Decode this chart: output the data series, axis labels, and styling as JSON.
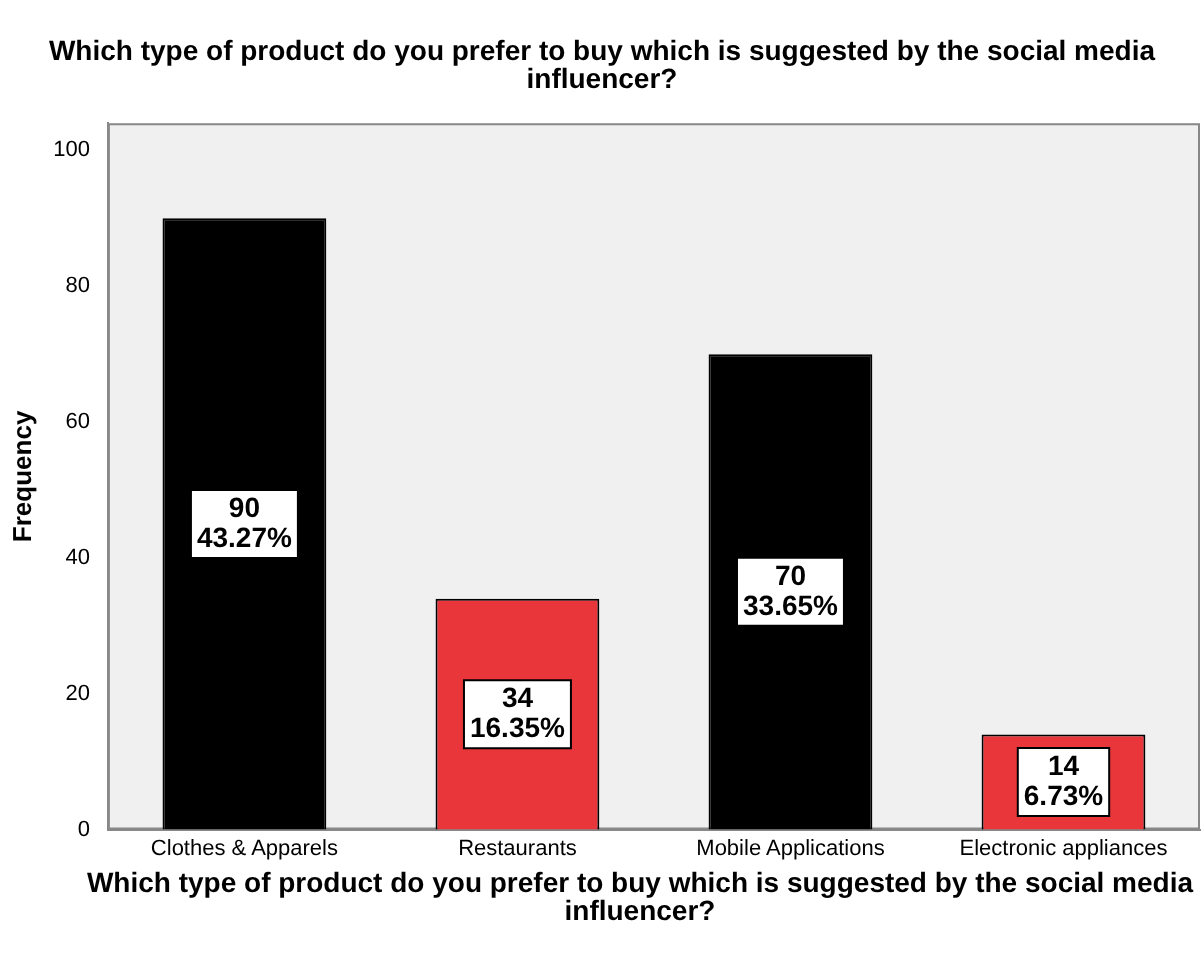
{
  "chart_data": {
    "type": "bar",
    "title": "Which type of product do you prefer to buy which is suggested by the social media influencer?",
    "xlabel": "Which type of product do you prefer to buy which is suggested by the social media influencer?",
    "ylabel": "Frequency",
    "categories": [
      "Clothes & Apparels",
      "Restaurants",
      "Mobile Applications",
      "Electronic appliances"
    ],
    "values": [
      90,
      34,
      70,
      14
    ],
    "colors": [
      "#000000",
      "#e8363a",
      "#000000",
      "#e8363a"
    ],
    "value_labels": [
      "90\n43.27%",
      "34\n16.35%",
      "70\n33.65%",
      "14\n6.73%"
    ],
    "ylim": [
      0,
      104
    ],
    "yticks": [
      0,
      20,
      40,
      60,
      80,
      100
    ],
    "grid": false,
    "legend": false
  }
}
